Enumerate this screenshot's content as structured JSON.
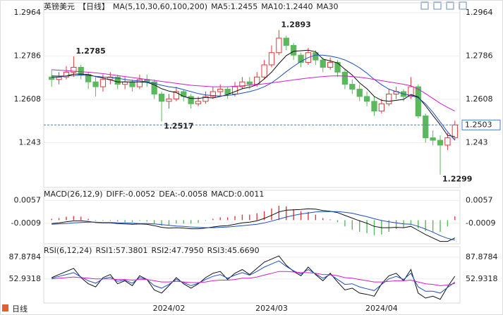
{
  "footer": "日线",
  "chart_data": [
    {
      "type": "candlestick",
      "title": "英镑美元",
      "period": "【日线】",
      "indicator": "MA(5,10,30,60,100,200)",
      "categories": [
        null,
        null,
        null,
        null,
        null,
        null,
        null,
        null,
        null,
        null,
        null,
        null,
        null,
        null,
        null,
        null,
        "2024/02",
        null,
        null,
        null,
        null,
        null,
        null,
        null,
        null,
        null,
        null,
        null,
        null,
        null,
        "2024/03",
        null,
        null,
        null,
        null,
        null,
        null,
        null,
        null,
        null,
        null,
        null,
        null,
        null,
        null,
        "2024/04",
        null,
        null,
        null,
        null,
        null,
        null,
        null,
        null,
        null,
        null
      ],
      "open": [
        1.27,
        1.269,
        1.27,
        1.272,
        1.274,
        1.271,
        1.268,
        1.266,
        1.269,
        1.27,
        1.267,
        1.268,
        1.266,
        1.269,
        1.268,
        1.263,
        1.26,
        1.261,
        1.264,
        1.262,
        1.259,
        1.26,
        1.262,
        1.264,
        1.265,
        1.263,
        1.266,
        1.268,
        1.267,
        1.27,
        1.275,
        1.28,
        1.286,
        1.283,
        1.279,
        1.276,
        1.28,
        1.277,
        1.274,
        1.276,
        1.272,
        1.267,
        1.265,
        1.262,
        1.26,
        1.256,
        1.259,
        1.263,
        1.264,
        1.262,
        1.266,
        1.254,
        1.245,
        1.244,
        1.242,
        1.245
      ],
      "high": [
        1.273,
        1.272,
        1.2745,
        1.2785,
        1.275,
        1.272,
        1.27,
        1.271,
        1.272,
        1.271,
        1.27,
        1.269,
        1.271,
        1.271,
        1.269,
        1.264,
        1.263,
        1.266,
        1.265,
        1.263,
        1.262,
        1.264,
        1.266,
        1.267,
        1.266,
        1.268,
        1.27,
        1.27,
        1.272,
        1.277,
        1.283,
        1.2893,
        1.287,
        1.284,
        1.28,
        1.282,
        1.281,
        1.278,
        1.278,
        1.277,
        1.273,
        1.269,
        1.267,
        1.264,
        1.262,
        1.261,
        1.265,
        1.266,
        1.265,
        1.27,
        1.267,
        1.255,
        1.248,
        1.246,
        1.247,
        1.252
      ],
      "low": [
        1.266,
        1.267,
        1.269,
        1.27,
        1.269,
        1.265,
        1.262,
        1.264,
        1.267,
        1.265,
        1.265,
        1.264,
        1.265,
        1.266,
        1.261,
        1.2517,
        1.257,
        1.26,
        1.26,
        1.257,
        1.258,
        1.259,
        1.261,
        1.262,
        1.261,
        1.262,
        1.265,
        1.265,
        1.266,
        1.269,
        1.274,
        1.279,
        1.281,
        1.277,
        1.274,
        1.275,
        1.275,
        1.272,
        1.273,
        1.27,
        1.265,
        1.263,
        1.26,
        1.258,
        1.254,
        1.255,
        1.258,
        1.261,
        1.26,
        1.261,
        1.253,
        1.243,
        1.242,
        1.2299,
        1.24,
        1.244
      ],
      "close": [
        1.269,
        1.27,
        1.272,
        1.274,
        1.271,
        1.268,
        1.266,
        1.269,
        1.27,
        1.267,
        1.268,
        1.266,
        1.269,
        1.268,
        1.263,
        1.26,
        1.261,
        1.264,
        1.262,
        1.259,
        1.26,
        1.262,
        1.264,
        1.265,
        1.263,
        1.266,
        1.268,
        1.267,
        1.27,
        1.275,
        1.28,
        1.286,
        1.283,
        1.279,
        1.276,
        1.28,
        1.277,
        1.274,
        1.276,
        1.272,
        1.267,
        1.265,
        1.262,
        1.26,
        1.256,
        1.259,
        1.263,
        1.264,
        1.262,
        1.266,
        1.254,
        1.245,
        1.244,
        1.242,
        1.245,
        1.2503
      ],
      "up_color": "#e03a3a",
      "down_color": "#5cb85c",
      "series": [
        {
          "name": "MA5:1.2455",
          "color": "#111111",
          "values": [
            1.27,
            1.27,
            1.2705,
            1.2712,
            1.2712,
            1.271,
            1.2702,
            1.2696,
            1.2688,
            1.268,
            1.268,
            1.268,
            1.268,
            1.2678,
            1.2668,
            1.2652,
            1.2642,
            1.2636,
            1.262,
            1.2612,
            1.2612,
            1.2616,
            1.2614,
            1.262,
            1.2628,
            1.264,
            1.2652,
            1.2658,
            1.2668,
            1.2692,
            1.272,
            1.2756,
            1.2788,
            1.2806,
            1.2808,
            1.281,
            1.2804,
            1.2774,
            1.2766,
            1.2758,
            1.2732,
            1.2708,
            1.2676,
            1.2652,
            1.262,
            1.2604,
            1.26,
            1.2604,
            1.2608,
            1.2628,
            1.2618,
            1.2582,
            1.2542,
            1.2504,
            1.246,
            1.2455
          ]
        },
        {
          "name": "MA10:1.2440",
          "color": "#1f4fbf",
          "values": [
            1.2705,
            1.2704,
            1.2704,
            1.2706,
            1.2708,
            1.2706,
            1.2703,
            1.27,
            1.2698,
            1.2695,
            1.269,
            1.2686,
            1.2684,
            1.268,
            1.2674,
            1.2666,
            1.266,
            1.2656,
            1.2648,
            1.264,
            1.2632,
            1.2626,
            1.2624,
            1.2622,
            1.2624,
            1.2628,
            1.2634,
            1.264,
            1.2648,
            1.266,
            1.2676,
            1.2698,
            1.2722,
            1.2744,
            1.2764,
            1.278,
            1.279,
            1.279,
            1.2786,
            1.278,
            1.277,
            1.2756,
            1.2738,
            1.2716,
            1.269,
            1.2668,
            1.265,
            1.264,
            1.263,
            1.2624,
            1.2615,
            1.259,
            1.2555,
            1.2515,
            1.2475,
            1.244
          ]
        },
        {
          "name": "MA30",
          "color": "#d020c8",
          "values": [
            1.273,
            1.2728,
            1.2726,
            1.2724,
            1.2722,
            1.272,
            1.2717,
            1.2714,
            1.271,
            1.2706,
            1.2702,
            1.2698,
            1.2694,
            1.269,
            1.2686,
            1.2682,
            1.2678,
            1.2674,
            1.267,
            1.2666,
            1.2664,
            1.2662,
            1.266,
            1.266,
            1.266,
            1.2662,
            1.2664,
            1.2666,
            1.2668,
            1.2672,
            1.2676,
            1.268,
            1.2684,
            1.2688,
            1.2692,
            1.2696,
            1.2699,
            1.2702,
            1.2704,
            1.2705,
            1.2704,
            1.2702,
            1.2699,
            1.2695,
            1.269,
            1.2685,
            1.268,
            1.2675,
            1.267,
            1.2664,
            1.265,
            1.2632,
            1.2612,
            1.2592,
            1.2575,
            1.256
          ]
        }
      ],
      "annotations": [
        1.2785,
        1.2893,
        1.2517,
        1.2299
      ],
      "annotation_color": "#c0392b",
      "last_price": 1.2503,
      "ylim": [
        1.2246,
        1.3005
      ],
      "yticks": [
        1.2964,
        1.2786,
        1.2608,
        1.243
      ]
    },
    {
      "type": "macd",
      "title": "MACD(26,12,9)",
      "series": [
        {
          "name": "DIFF:-0.0052",
          "color": "#111111",
          "values": [
            -0.001,
            -0.0008,
            -0.0005,
            -0.0002,
            -0.0002,
            -0.0004,
            -0.0007,
            -0.0008,
            -0.0008,
            -0.001,
            -0.0011,
            -0.0012,
            -0.0011,
            -0.0012,
            -0.0016,
            -0.0021,
            -0.0023,
            -0.0022,
            -0.0023,
            -0.0025,
            -0.0025,
            -0.0023,
            -0.002,
            -0.0017,
            -0.0016,
            -0.0012,
            -0.0008,
            -0.0006,
            -0.0002,
            0.0005,
            0.0014,
            0.0024,
            0.0029,
            0.003,
            0.0031,
            0.0033,
            0.0032,
            0.0028,
            0.0026,
            0.0022,
            0.0014,
            0.0006,
            -0.0002,
            -0.0009,
            -0.0018,
            -0.0022,
            -0.0022,
            -0.0021,
            -0.0022,
            -0.0018,
            -0.003,
            -0.0042,
            -0.0052,
            -0.0062,
            -0.0062,
            -0.0052
          ]
        },
        {
          "name": "DEA:-0.0058",
          "color": "#1f4fbf",
          "values": [
            -0.0012,
            -0.0011,
            -0.001,
            -0.0008,
            -0.0007,
            -0.0006,
            -0.0006,
            -0.0007,
            -0.0007,
            -0.0008,
            -0.0008,
            -0.0009,
            -0.001,
            -0.001,
            -0.0011,
            -0.0013,
            -0.0015,
            -0.0017,
            -0.0018,
            -0.002,
            -0.0021,
            -0.0022,
            -0.0022,
            -0.0021,
            -0.002,
            -0.0018,
            -0.0016,
            -0.0014,
            -0.0012,
            -0.0008,
            -0.0003,
            0.0003,
            0.0009,
            0.0014,
            0.0018,
            0.0021,
            0.0024,
            0.0025,
            0.0025,
            0.0025,
            0.0023,
            0.002,
            0.0015,
            0.001,
            0.0004,
            -0.0001,
            -0.0005,
            -0.0008,
            -0.0011,
            -0.0012,
            -0.0018,
            -0.0026,
            -0.0035,
            -0.0045,
            -0.0053,
            -0.0058
          ]
        },
        {
          "name": "MACD:0.0011",
          "color": "#d020c8",
          "values": [
            0.0004,
            0.0006,
            0.001,
            0.0012,
            0.001,
            0.0004,
            -0.0002,
            -0.0002,
            -0.0002,
            -0.0004,
            -0.0006,
            -0.0006,
            -0.0002,
            -0.0004,
            -0.001,
            -0.0016,
            -0.0016,
            -0.001,
            -0.001,
            -0.001,
            -0.0008,
            -0.0002,
            0.0004,
            0.0008,
            0.0008,
            0.0012,
            0.0016,
            0.0016,
            0.002,
            0.0026,
            0.0034,
            0.0042,
            0.004,
            0.0032,
            0.0026,
            0.0024,
            0.0016,
            0.0006,
            0.0002,
            -0.0006,
            -0.0018,
            -0.0028,
            -0.0034,
            -0.0038,
            -0.0044,
            -0.0042,
            -0.0034,
            -0.0026,
            -0.0022,
            -0.0012,
            -0.0024,
            -0.0032,
            -0.0034,
            -0.0034,
            -0.0018,
            0.0011
          ]
        }
      ],
      "up_color": "#e03a3a",
      "down_color": "#5cb85c",
      "ylim": [
        -0.0069,
        0.0087
      ],
      "yticks": [
        0.0057,
        -0.0009
      ]
    },
    {
      "type": "rsi",
      "title": "RSI(6,12,24)",
      "series": [
        {
          "name": "RSI1:57.3801",
          "color": "#111111",
          "values": [
            55,
            60,
            65,
            70,
            55,
            45,
            40,
            55,
            60,
            45,
            50,
            42,
            58,
            52,
            35,
            30,
            42,
            55,
            45,
            38,
            45,
            55,
            62,
            65,
            52,
            62,
            68,
            60,
            70,
            80,
            85,
            90,
            75,
            65,
            58,
            72,
            60,
            50,
            62,
            48,
            35,
            38,
            30,
            28,
            25,
            45,
            58,
            62,
            50,
            68,
            30,
            22,
            25,
            20,
            40,
            57.3801
          ]
        },
        {
          "name": "RSI2:47.7950",
          "color": "#1f4fbf",
          "values": [
            54,
            57,
            60,
            63,
            56,
            50,
            46,
            53,
            56,
            49,
            51,
            46,
            55,
            52,
            42,
            38,
            44,
            52,
            47,
            42,
            46,
            52,
            57,
            60,
            54,
            59,
            63,
            59,
            65,
            72,
            77,
            82,
            73,
            66,
            61,
            68,
            61,
            54,
            60,
            52,
            44,
            45,
            40,
            37,
            34,
            44,
            53,
            57,
            52,
            62,
            40,
            33,
            33,
            30,
            39,
            47.795
          ]
        },
        {
          "name": "RSI3:45.6690",
          "color": "#d020c8",
          "values": [
            53,
            54,
            55,
            56,
            55,
            54,
            53,
            53,
            53,
            52,
            52,
            51,
            52,
            52,
            50,
            48,
            48,
            49,
            48,
            47,
            47,
            48,
            50,
            51,
            51,
            52,
            54,
            54,
            56,
            59,
            62,
            65,
            65,
            64,
            63,
            63,
            62,
            60,
            60,
            58,
            55,
            54,
            52,
            50,
            48,
            48,
            49,
            50,
            50,
            51,
            48,
            45,
            44,
            42,
            43,
            45.669
          ]
        }
      ],
      "ylim": [
        14,
        105
      ],
      "yticks": [
        87.8784,
        52.9318
      ]
    }
  ]
}
